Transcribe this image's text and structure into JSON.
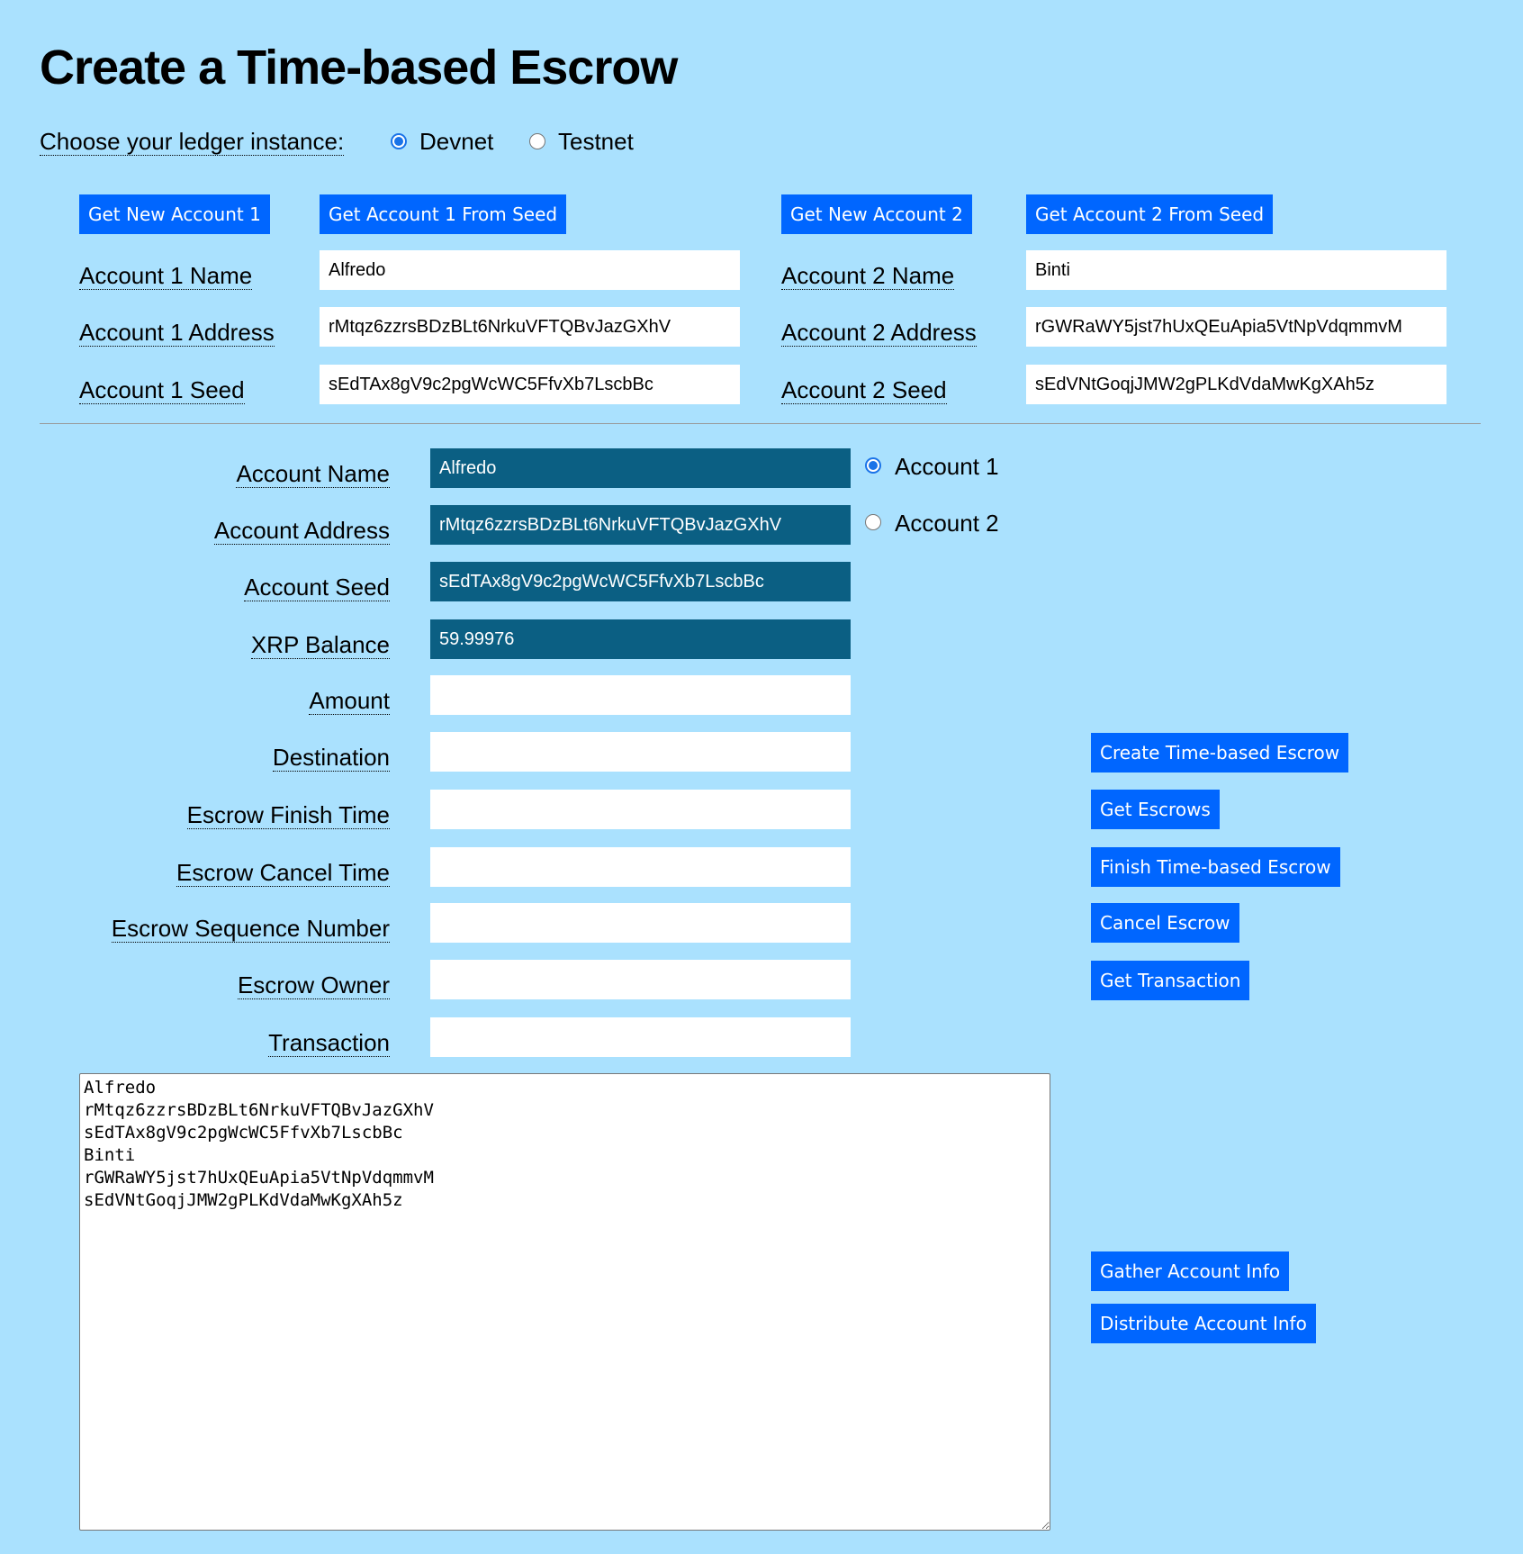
{
  "title": "Create a Time-based Escrow",
  "ledger": {
    "label": "Choose your ledger instance:",
    "options": [
      {
        "label": "Devnet",
        "selected": true
      },
      {
        "label": "Testnet",
        "selected": false
      }
    ]
  },
  "account1": {
    "new_button": "Get New Account 1",
    "seed_button": "Get Account 1 From Seed",
    "name_label": "Account 1 Name",
    "name": "Alfredo",
    "address_label": "Account 1 Address",
    "address": "rMtqz6zzrsBDzBLt6NrkuVFTQBvJazGXhV",
    "seed_label": "Account 1 Seed",
    "seed": "sEdTAx8gV9c2pgWcWC5FfvXb7LscbBc"
  },
  "account2": {
    "new_button": "Get New Account 2",
    "seed_button": "Get Account 2 From Seed",
    "name_label": "Account 2 Name",
    "name": "Binti",
    "address_label": "Account 2 Address",
    "address": "rGWRaWY5jst7hUxQEuApia5VtNpVdqmmvM",
    "seed_label": "Account 2 Seed",
    "seed": "sEdVNtGoqjJMW2gPLKdVdaMwKgXAh5z"
  },
  "form": {
    "fields": [
      {
        "label": "Account Name",
        "value": "Alfredo"
      },
      {
        "label": "Account Address",
        "value": "rMtqz6zzrsBDzBLt6NrkuVFTQBvJazGXhV"
      },
      {
        "label": "Account Seed",
        "value": "sEdTAx8gV9c2pgWcWC5FfvXb7LscbBc"
      },
      {
        "label": "XRP Balance",
        "value": "59.99976"
      },
      {
        "label": "Amount",
        "value": ""
      },
      {
        "label": "Destination",
        "value": ""
      },
      {
        "label": "Escrow Finish Time",
        "value": ""
      },
      {
        "label": "Escrow Cancel Time",
        "value": ""
      },
      {
        "label": "Escrow Sequence Number",
        "value": ""
      },
      {
        "label": "Escrow Owner",
        "value": ""
      },
      {
        "label": "Transaction",
        "value": ""
      }
    ],
    "account_select": [
      {
        "label": "Account 1",
        "selected": true
      },
      {
        "label": "Account 2",
        "selected": false
      }
    ]
  },
  "actions": {
    "create": "Create Time-based Escrow",
    "get_escrows": "Get Escrows",
    "finish": "Finish Time-based Escrow",
    "cancel": "Cancel Escrow",
    "get_transaction": "Get Transaction",
    "gather": "Gather Account Info",
    "distribute": "Distribute Account Info"
  },
  "results": "Alfredo\nrMtqz6zzrsBDzBLt6NrkuVFTQBvJazGXhV\nsEdTAx8gV9c2pgWcWC5FfvXb7LscbBc\nBinti\nrGWRaWY5jst7hUxQEuApia5VtNpVdqmmvM\nsEdVNtGoqjJMW2gPLKdVdaMwKgXAh5z",
  "colors": {
    "background": "#aae1fe",
    "button": "#0066ff",
    "readonly_field": "#0b5f83"
  }
}
